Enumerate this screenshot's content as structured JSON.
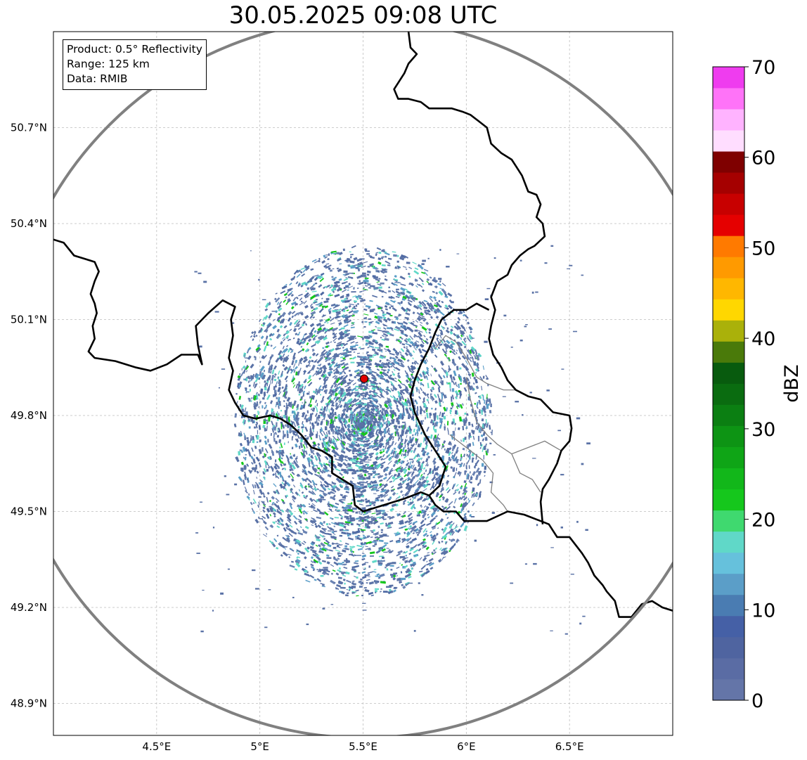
{
  "title": "30.05.2025 09:08 UTC",
  "info": {
    "product": "Product: 0.5° Reflectivity",
    "range": "Range: 125 km",
    "data": "Data: RMIB"
  },
  "map": {
    "lon_range": [
      4.0,
      7.0
    ],
    "lat_range": [
      48.8,
      51.0
    ],
    "lon_ticks": [
      {
        "value": 4.5,
        "label": "4.5°E"
      },
      {
        "value": 5.0,
        "label": "5°E"
      },
      {
        "value": 5.5,
        "label": "5.5°E"
      },
      {
        "value": 6.0,
        "label": "6°E"
      },
      {
        "value": 6.5,
        "label": "6.5°E"
      }
    ],
    "lat_ticks": [
      {
        "value": 50.7,
        "label": "50.7°N"
      },
      {
        "value": 50.4,
        "label": "50.4°N"
      },
      {
        "value": 50.1,
        "label": "50.1°N"
      },
      {
        "value": 49.8,
        "label": "49.8°N"
      },
      {
        "value": 49.5,
        "label": "49.5°N"
      },
      {
        "value": 49.2,
        "label": "49.2°N"
      },
      {
        "value": 48.9,
        "label": "48.9°N"
      }
    ],
    "gridlines": true,
    "radar_site": {
      "lon": 5.505,
      "lat": 49.915,
      "color": "#e00000"
    },
    "range_km": 125,
    "range_ring_color": "#808080",
    "border_color": "#000000",
    "province_border_color": "#808080",
    "country_borders": [
      [
        [
          4.0,
          50.35
        ],
        [
          4.05,
          50.34
        ],
        [
          4.1,
          50.3
        ],
        [
          4.15,
          50.29
        ],
        [
          4.2,
          50.28
        ],
        [
          4.22,
          50.25
        ],
        [
          4.2,
          50.22
        ],
        [
          4.18,
          50.18
        ],
        [
          4.2,
          50.15
        ],
        [
          4.21,
          50.12
        ],
        [
          4.19,
          50.08
        ],
        [
          4.2,
          50.04
        ],
        [
          4.17,
          50.0
        ],
        [
          4.2,
          49.98
        ],
        [
          4.3,
          49.97
        ],
        [
          4.4,
          49.95
        ],
        [
          4.47,
          49.94
        ],
        [
          4.55,
          49.96
        ],
        [
          4.62,
          49.99
        ],
        [
          4.7,
          49.99
        ],
        [
          4.72,
          49.96
        ],
        [
          4.7,
          50.02
        ],
        [
          4.69,
          50.08
        ],
        [
          4.75,
          50.12
        ],
        [
          4.82,
          50.16
        ],
        [
          4.88,
          50.14
        ],
        [
          4.86,
          50.1
        ],
        [
          4.87,
          50.05
        ],
        [
          4.85,
          49.98
        ],
        [
          4.87,
          49.94
        ],
        [
          4.85,
          49.88
        ],
        [
          4.88,
          49.84
        ],
        [
          4.92,
          49.8
        ],
        [
          4.98,
          49.79
        ],
        [
          5.05,
          49.8
        ],
        [
          5.1,
          49.79
        ],
        [
          5.15,
          49.77
        ],
        [
          5.2,
          49.74
        ],
        [
          5.25,
          49.7
        ],
        [
          5.3,
          49.69
        ],
        [
          5.35,
          49.67
        ],
        [
          5.35,
          49.62
        ],
        [
          5.4,
          49.6
        ],
        [
          5.45,
          49.58
        ],
        [
          5.46,
          49.52
        ],
        [
          5.5,
          49.5
        ],
        [
          5.6,
          49.52
        ],
        [
          5.7,
          49.54
        ],
        [
          5.78,
          49.56
        ],
        [
          5.82,
          49.55
        ],
        [
          5.85,
          49.52
        ],
        [
          5.89,
          49.5
        ],
        [
          5.95,
          49.5
        ],
        [
          5.99,
          49.47
        ],
        [
          6.1,
          49.47
        ],
        [
          6.2,
          49.5
        ],
        [
          6.28,
          49.49
        ],
        [
          6.36,
          49.47
        ],
        [
          6.4,
          49.46
        ],
        [
          6.44,
          49.42
        ],
        [
          6.5,
          49.42
        ],
        [
          6.56,
          49.37
        ],
        [
          6.59,
          49.34
        ],
        [
          6.62,
          49.3
        ],
        [
          6.66,
          49.27
        ],
        [
          6.68,
          49.25
        ],
        [
          6.72,
          49.22
        ],
        [
          6.74,
          49.17
        ],
        [
          6.8,
          49.17
        ],
        [
          6.85,
          49.21
        ],
        [
          6.9,
          49.22
        ],
        [
          6.95,
          49.2
        ],
        [
          7.0,
          49.19
        ]
      ],
      [
        [
          5.72,
          51.0
        ],
        [
          5.73,
          50.95
        ],
        [
          5.76,
          50.93
        ],
        [
          5.72,
          50.9
        ],
        [
          5.7,
          50.87
        ],
        [
          5.65,
          50.82
        ],
        [
          5.67,
          50.79
        ],
        [
          5.72,
          50.79
        ],
        [
          5.78,
          50.78
        ],
        [
          5.82,
          50.76
        ],
        [
          5.88,
          50.76
        ],
        [
          5.93,
          50.76
        ],
        [
          5.98,
          50.75
        ],
        [
          6.02,
          50.74
        ],
        [
          6.06,
          50.72
        ],
        [
          6.1,
          50.7
        ],
        [
          6.12,
          50.65
        ],
        [
          6.17,
          50.62
        ],
        [
          6.22,
          50.6
        ],
        [
          6.24,
          50.58
        ],
        [
          6.27,
          50.55
        ],
        [
          6.3,
          50.5
        ],
        [
          6.34,
          50.49
        ],
        [
          6.36,
          50.46
        ],
        [
          6.34,
          50.42
        ],
        [
          6.37,
          50.4
        ],
        [
          6.38,
          50.36
        ],
        [
          6.33,
          50.33
        ],
        [
          6.3,
          50.32
        ],
        [
          6.26,
          50.3
        ],
        [
          6.22,
          50.27
        ],
        [
          6.2,
          50.24
        ],
        [
          6.15,
          50.22
        ],
        [
          6.12,
          50.17
        ],
        [
          6.14,
          50.13
        ],
        [
          6.12,
          50.08
        ],
        [
          6.11,
          50.04
        ],
        [
          6.13,
          49.99
        ],
        [
          6.17,
          49.95
        ],
        [
          6.2,
          49.91
        ],
        [
          6.24,
          49.88
        ],
        [
          6.3,
          49.86
        ],
        [
          6.36,
          49.85
        ],
        [
          6.42,
          49.81
        ],
        [
          6.5,
          49.8
        ],
        [
          6.51,
          49.76
        ],
        [
          6.5,
          49.72
        ],
        [
          6.46,
          49.69
        ],
        [
          6.44,
          49.65
        ],
        [
          6.4,
          49.6
        ],
        [
          6.37,
          49.57
        ],
        [
          6.36,
          49.53
        ],
        [
          6.37,
          49.46
        ]
      ],
      [
        [
          5.82,
          50.01
        ],
        [
          5.85,
          50.06
        ],
        [
          5.88,
          50.1
        ],
        [
          5.94,
          50.13
        ],
        [
          6.0,
          50.13
        ],
        [
          6.05,
          50.15
        ],
        [
          6.11,
          50.13
        ]
      ],
      [
        [
          5.82,
          50.01
        ],
        [
          5.78,
          49.96
        ],
        [
          5.75,
          49.91
        ],
        [
          5.73,
          49.86
        ],
        [
          5.75,
          49.81
        ],
        [
          5.8,
          49.74
        ],
        [
          5.85,
          49.69
        ],
        [
          5.9,
          49.64
        ],
        [
          5.87,
          49.58
        ],
        [
          5.82,
          49.55
        ]
      ]
    ],
    "province_borders": [
      [
        [
          5.85,
          50.01
        ],
        [
          5.9,
          50.05
        ],
        [
          5.95,
          50.03
        ],
        [
          6.0,
          49.98
        ],
        [
          6.05,
          49.92
        ],
        [
          6.1,
          49.9
        ],
        [
          6.18,
          49.88
        ],
        [
          6.24,
          49.88
        ]
      ],
      [
        [
          6.0,
          49.92
        ],
        [
          6.02,
          49.85
        ],
        [
          6.05,
          49.78
        ],
        [
          6.1,
          49.74
        ],
        [
          6.15,
          49.71
        ],
        [
          6.22,
          49.68
        ],
        [
          6.26,
          49.62
        ],
        [
          6.32,
          49.6
        ],
        [
          6.36,
          49.56
        ]
      ],
      [
        [
          5.92,
          49.74
        ],
        [
          6.0,
          49.7
        ],
        [
          6.08,
          49.66
        ],
        [
          6.13,
          49.62
        ],
        [
          6.12,
          49.56
        ],
        [
          6.18,
          49.52
        ],
        [
          6.2,
          49.5
        ]
      ],
      [
        [
          6.22,
          49.68
        ],
        [
          6.3,
          49.7
        ],
        [
          6.38,
          49.72
        ],
        [
          6.46,
          49.69
        ]
      ]
    ],
    "echo_field": {
      "center_lon": 5.5,
      "center_lat": 49.78,
      "radius_deg_lon": 1.2,
      "radius_deg_lat": 0.55,
      "seed": 9
    }
  },
  "colorbar": {
    "label": "dBZ",
    "min": 0,
    "max": 70,
    "ticks": [
      {
        "value": 0,
        "label": "0"
      },
      {
        "value": 10,
        "label": "10"
      },
      {
        "value": 20,
        "label": "20"
      },
      {
        "value": 30,
        "label": "30"
      },
      {
        "value": 40,
        "label": "40"
      },
      {
        "value": 50,
        "label": "50"
      },
      {
        "value": 60,
        "label": "60"
      },
      {
        "value": 70,
        "label": "70"
      }
    ],
    "colors": [
      "#6475a8",
      "#5a6ca4",
      "#4f64a0",
      "#4560a6",
      "#4a7cb2",
      "#5b9ec8",
      "#66c1dc",
      "#60d8c8",
      "#3fd96f",
      "#15c71c",
      "#12b71a",
      "#0fa516",
      "#0d9414",
      "#0b7f12",
      "#0a6c10",
      "#085b0e",
      "#4a7a0a",
      "#aab10a",
      "#ffd700",
      "#ffb700",
      "#ff9a00",
      "#ff7a00",
      "#e50000",
      "#c80000",
      "#a50000",
      "#7f0000",
      "#ffddff",
      "#ffb3ff",
      "#ff73f8",
      "#ef3cef"
    ]
  }
}
